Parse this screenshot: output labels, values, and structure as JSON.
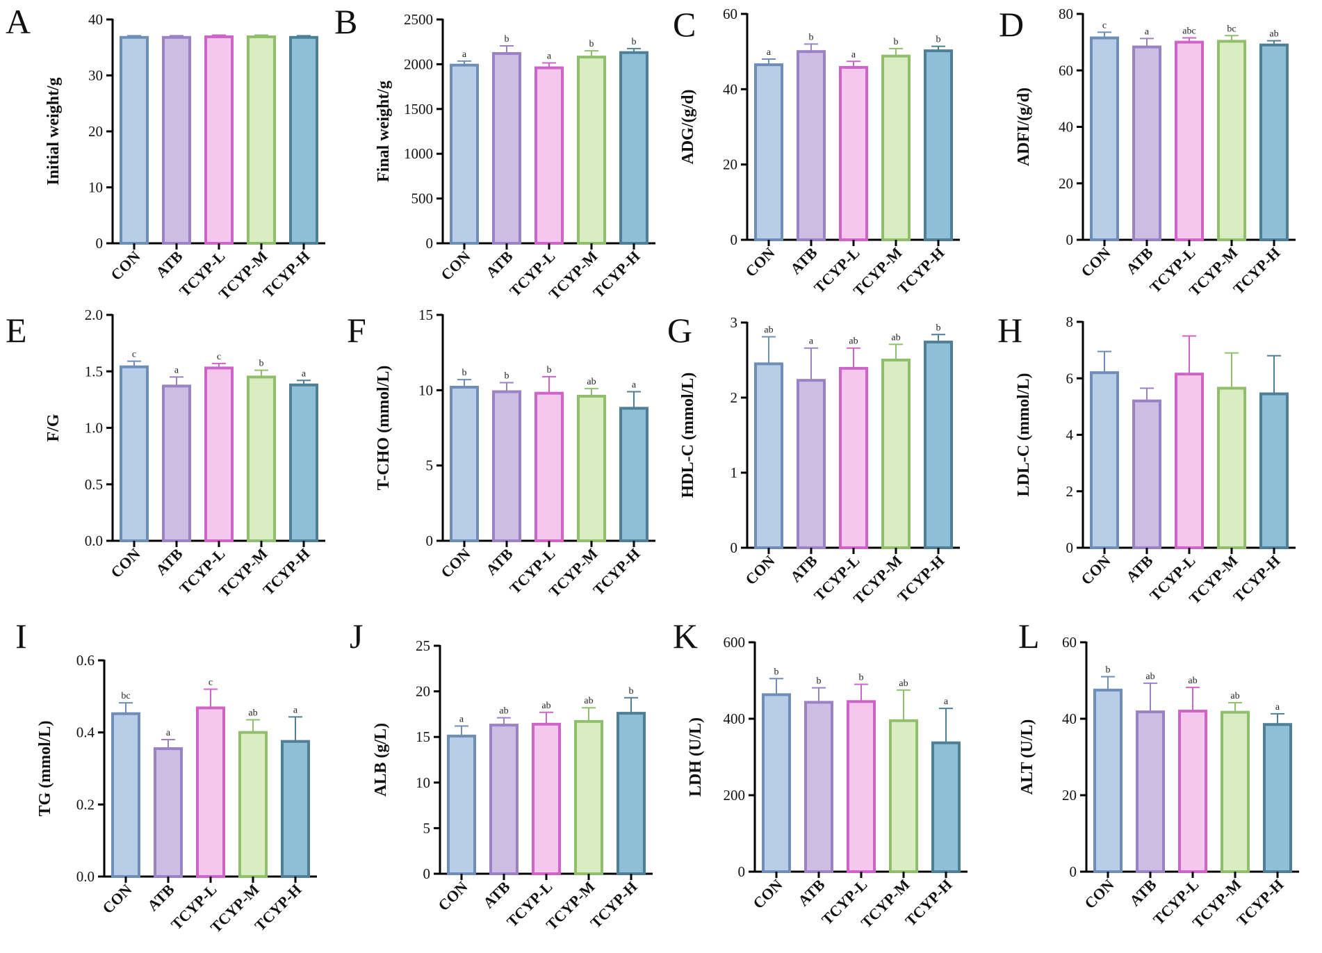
{
  "figure": {
    "categories": [
      "CON",
      "ATB",
      "TCYP-L",
      "TCYP-M",
      "TCYP-H"
    ],
    "colors": {
      "fills": [
        "#b8cde8",
        "#cdbde4",
        "#f5c6ee",
        "#d9ecc2",
        "#8ebfd6"
      ],
      "strokes": [
        "#6e8eb8",
        "#9a82c4",
        "#cf63c7",
        "#8fbf6b",
        "#4d7f96"
      ]
    }
  },
  "chart_data": [
    {
      "letter": "A",
      "type": "bar",
      "ylabel": "Initial weight/g",
      "ylim": [
        0,
        40
      ],
      "yticks": [
        0,
        10,
        20,
        30,
        40
      ],
      "tick_labels": [
        "0",
        "10",
        "20",
        "30",
        "40"
      ],
      "values": [
        36.8,
        36.8,
        36.9,
        36.9,
        36.8
      ],
      "errors": [
        0.3,
        0.3,
        0.3,
        0.3,
        0.3
      ],
      "sig": [
        "",
        "",
        "",
        "",
        ""
      ]
    },
    {
      "letter": "B",
      "type": "bar",
      "ylabel": "Final weight/g",
      "ylim": [
        0,
        2500
      ],
      "yticks": [
        0,
        500,
        1000,
        1500,
        2000,
        2500
      ],
      "tick_labels": [
        "0",
        "500",
        "1000",
        "1500",
        "2000",
        "2500"
      ],
      "values": [
        1990,
        2120,
        1960,
        2080,
        2130
      ],
      "errors": [
        45,
        85,
        55,
        70,
        45
      ],
      "sig": [
        "a",
        "b",
        "a",
        "b",
        "b"
      ]
    },
    {
      "letter": "C",
      "type": "bar",
      "ylabel": "ADG/(g/d)",
      "ylim": [
        0,
        60
      ],
      "yticks": [
        0,
        20,
        40,
        60
      ],
      "tick_labels": [
        "0",
        "20",
        "40",
        "60"
      ],
      "values": [
        46.5,
        50.0,
        45.8,
        48.8,
        50.2
      ],
      "errors": [
        1.5,
        2.0,
        1.6,
        2.0,
        1.2
      ],
      "sig": [
        "a",
        "b",
        "a",
        "b",
        "b"
      ]
    },
    {
      "letter": "D",
      "type": "bar",
      "ylabel": "ADFI/(g/d)",
      "ylim": [
        0,
        80
      ],
      "yticks": [
        0,
        20,
        40,
        60,
        80
      ],
      "tick_labels": [
        "0",
        "20",
        "40",
        "60",
        "80"
      ],
      "values": [
        71.5,
        68.3,
        70.0,
        70.3,
        69.0
      ],
      "errors": [
        2.0,
        3.0,
        1.5,
        2.0,
        1.5
      ],
      "sig": [
        "c",
        "a",
        "abc",
        "bc",
        "ab"
      ]
    },
    {
      "letter": "E",
      "type": "bar",
      "ylabel": "F/G",
      "ylim": [
        0,
        2.0
      ],
      "yticks": [
        0,
        0.5,
        1.0,
        1.5,
        2.0
      ],
      "tick_labels": [
        "0.0",
        "0.5",
        "1.0",
        "1.5",
        "2.0"
      ],
      "values": [
        1.54,
        1.37,
        1.53,
        1.45,
        1.38
      ],
      "errors": [
        0.05,
        0.08,
        0.04,
        0.06,
        0.04
      ],
      "sig": [
        "c",
        "a",
        "c",
        "b",
        "a"
      ]
    },
    {
      "letter": "F",
      "type": "bar",
      "ylabel": "T-CHO (mmol/L)",
      "ylim": [
        0,
        15
      ],
      "yticks": [
        0,
        5,
        10,
        15
      ],
      "tick_labels": [
        "0",
        "5",
        "10",
        "15"
      ],
      "values": [
        10.2,
        9.9,
        9.8,
        9.6,
        8.8
      ],
      "errors": [
        0.5,
        0.6,
        1.1,
        0.5,
        1.1
      ],
      "sig": [
        "b",
        "b",
        "b",
        "ab",
        "a"
      ]
    },
    {
      "letter": "G",
      "type": "bar",
      "ylabel": "HDL-C (mmol/L)",
      "ylim": [
        0,
        3
      ],
      "yticks": [
        0,
        1,
        2,
        3
      ],
      "tick_labels": [
        "0",
        "1",
        "2",
        "3"
      ],
      "values": [
        2.45,
        2.23,
        2.39,
        2.5,
        2.74
      ],
      "errors": [
        0.36,
        0.43,
        0.27,
        0.21,
        0.1
      ],
      "sig": [
        "ab",
        "a",
        "ab",
        "ab",
        "b"
      ]
    },
    {
      "letter": "H",
      "type": "bar",
      "ylabel": "LDL-C (mmol/L)",
      "ylim": [
        0,
        8
      ],
      "yticks": [
        0,
        2,
        4,
        6,
        8
      ],
      "tick_labels": [
        "0",
        "2",
        "4",
        "6",
        "8"
      ],
      "values": [
        6.2,
        5.2,
        6.15,
        5.65,
        5.45
      ],
      "errors": [
        0.75,
        0.45,
        1.35,
        1.25,
        1.35
      ],
      "sig": [
        "",
        "",
        "",
        "",
        ""
      ]
    },
    {
      "letter": "I",
      "type": "bar",
      "ylabel": "TG (mmol/L)",
      "ylim": [
        0,
        0.6
      ],
      "yticks": [
        0,
        0.2,
        0.4,
        0.6
      ],
      "tick_labels": [
        "0.0",
        "0.2",
        "0.4",
        "0.6"
      ],
      "values": [
        0.452,
        0.355,
        0.468,
        0.4,
        0.375
      ],
      "errors": [
        0.03,
        0.025,
        0.052,
        0.035,
        0.068
      ],
      "sig": [
        "bc",
        "a",
        "c",
        "ab",
        "a"
      ]
    },
    {
      "letter": "J",
      "type": "bar",
      "ylabel": "ALB (g/L)",
      "ylim": [
        0,
        25
      ],
      "yticks": [
        0,
        5,
        10,
        15,
        20,
        25
      ],
      "tick_labels": [
        "0",
        "5",
        "10",
        "15",
        "20",
        "25"
      ],
      "values": [
        15.1,
        16.3,
        16.4,
        16.7,
        17.6
      ],
      "errors": [
        1.1,
        0.8,
        1.3,
        1.5,
        1.7
      ],
      "sig": [
        "a",
        "ab",
        "ab",
        "ab",
        "b"
      ]
    },
    {
      "letter": "K",
      "type": "bar",
      "ylabel": "LDH (U/L)",
      "ylim": [
        0,
        600
      ],
      "yticks": [
        0,
        200,
        400,
        600
      ],
      "tick_labels": [
        "0",
        "200",
        "400",
        "600"
      ],
      "values": [
        463,
        443,
        445,
        395,
        337
      ],
      "errors": [
        42,
        38,
        45,
        80,
        90
      ],
      "sig": [
        "b",
        "b",
        "b",
        "ab",
        "a"
      ]
    },
    {
      "letter": "L",
      "type": "bar",
      "ylabel": "ALT (U/L)",
      "ylim": [
        0,
        60
      ],
      "yticks": [
        0,
        20,
        40,
        60
      ],
      "tick_labels": [
        "0",
        "20",
        "40",
        "60"
      ],
      "values": [
        47.5,
        41.8,
        42.0,
        41.7,
        38.5
      ],
      "errors": [
        3.5,
        7.5,
        6.2,
        2.5,
        2.8
      ],
      "sig": [
        "b",
        "ab",
        "ab",
        "ab",
        "a"
      ]
    }
  ]
}
